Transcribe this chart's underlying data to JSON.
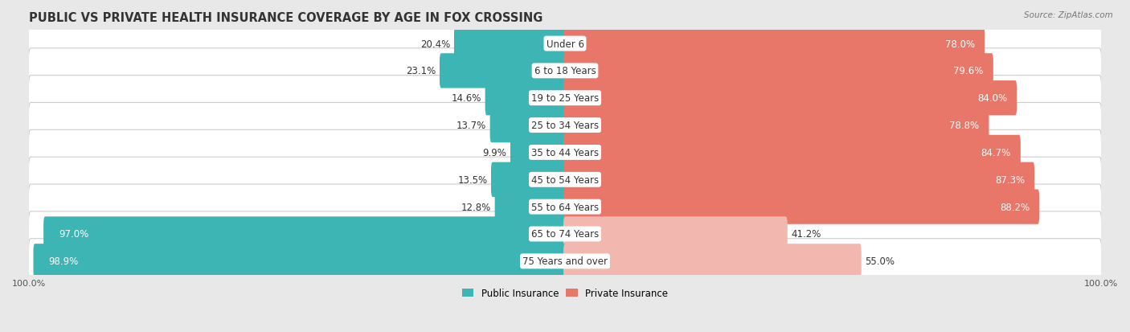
{
  "title": "Public vs Private Health Insurance Coverage by Age in Fox Crossing",
  "source": "Source: ZipAtlas.com",
  "categories": [
    "Under 6",
    "6 to 18 Years",
    "19 to 25 Years",
    "25 to 34 Years",
    "35 to 44 Years",
    "45 to 54 Years",
    "55 to 64 Years",
    "65 to 74 Years",
    "75 Years and over"
  ],
  "public_values": [
    20.4,
    23.1,
    14.6,
    13.7,
    9.9,
    13.5,
    12.8,
    97.0,
    98.9
  ],
  "private_values": [
    78.0,
    79.6,
    84.0,
    78.8,
    84.7,
    87.3,
    88.2,
    41.2,
    55.0
  ],
  "public_color_dark": "#3eb5b5",
  "public_color_light": "#3eb5b5",
  "private_color_dark": "#e8776a",
  "private_color_light": "#f2b8b0",
  "bg_color": "#e8e8e8",
  "row_bg": "#f5f5f5",
  "row_border": "#d8d8d8",
  "title_color": "#333333",
  "label_dark": "#333333",
  "label_white": "#ffffff",
  "title_fontsize": 10.5,
  "label_fontsize": 8.5,
  "cat_fontsize": 8.5,
  "axis_fontsize": 8,
  "legend_fontsize": 8.5,
  "max_val": 100
}
